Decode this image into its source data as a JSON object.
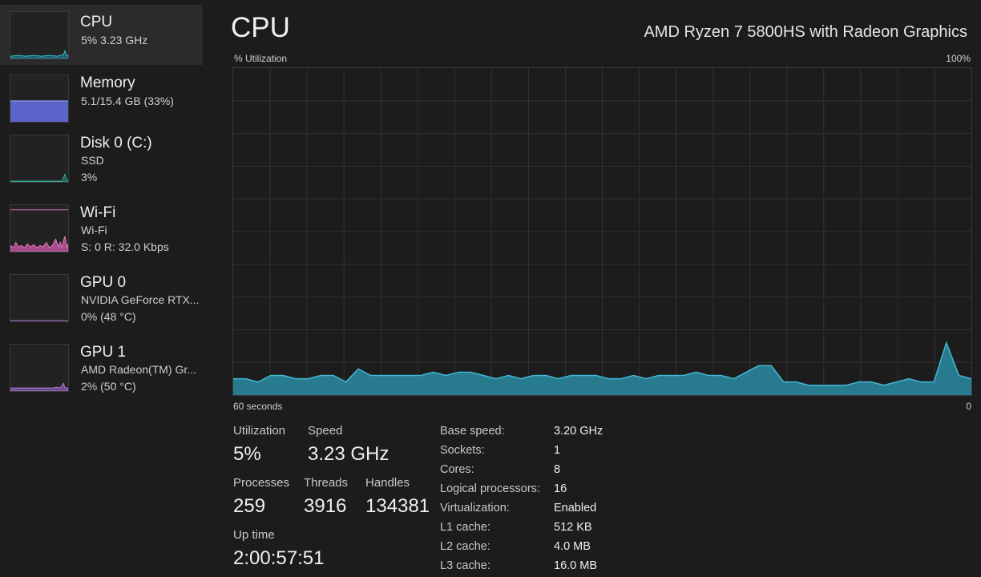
{
  "sidebar": {
    "items": [
      {
        "title": "CPU",
        "line1": "5%  3.23 GHz",
        "line2": ""
      },
      {
        "title": "Memory",
        "line1": "5.1/15.4 GB (33%)",
        "line2": ""
      },
      {
        "title": "Disk 0 (C:)",
        "line1": "SSD",
        "line2": "3%"
      },
      {
        "title": "Wi-Fi",
        "line1": "Wi-Fi",
        "line2": "S: 0  R: 32.0 Kbps"
      },
      {
        "title": "GPU 0",
        "line1": "NVIDIA GeForce RTX...",
        "line2": "0%  (48 °C)"
      },
      {
        "title": "GPU 1",
        "line1": "AMD Radeon(TM) Gr...",
        "line2": "2%  (50 °C)"
      }
    ]
  },
  "header": {
    "title": "CPU",
    "model": "AMD Ryzen 7 5800HS with Radeon Graphics",
    "y_label": "% Utilization",
    "y_max_label": "100%",
    "x_left_label": "60 seconds",
    "x_right_label": "0"
  },
  "stats": {
    "utilization_label": "Utilization",
    "utilization": "5%",
    "speed_label": "Speed",
    "speed": "3.23 GHz",
    "processes_label": "Processes",
    "processes": "259",
    "threads_label": "Threads",
    "threads": "3916",
    "handles_label": "Handles",
    "handles": "134381",
    "uptime_label": "Up time",
    "uptime": "2:00:57:51"
  },
  "specs": [
    {
      "key": "Base speed:",
      "value": "3.20 GHz"
    },
    {
      "key": "Sockets:",
      "value": "1"
    },
    {
      "key": "Cores:",
      "value": "8"
    },
    {
      "key": "Logical processors:",
      "value": "16"
    },
    {
      "key": "Virtualization:",
      "value": "Enabled"
    },
    {
      "key": "L1 cache:",
      "value": "512 KB"
    },
    {
      "key": "L2 cache:",
      "value": "4.0 MB"
    },
    {
      "key": "L3 cache:",
      "value": "16.0 MB"
    }
  ],
  "colors": {
    "cpu": "#41b9d5",
    "memory": "#7b84e8",
    "disk": "#3aa898",
    "wifi": "#e07ec0",
    "gpu": "#b07fd6"
  },
  "cpu_graph": {
    "y_range": [
      0,
      100
    ],
    "values": [
      5,
      5,
      4,
      6,
      6,
      5,
      5,
      6,
      6,
      4,
      8,
      6,
      6,
      6,
      6,
      6,
      7,
      6,
      7,
      7,
      6,
      5,
      6,
      5,
      6,
      6,
      5,
      6,
      6,
      6,
      5,
      5,
      6,
      5,
      6,
      6,
      6,
      7,
      6,
      6,
      5,
      7,
      9,
      9,
      4,
      4,
      3,
      3,
      3,
      3,
      4,
      4,
      3,
      4,
      5,
      4,
      4,
      16,
      6,
      5
    ]
  }
}
